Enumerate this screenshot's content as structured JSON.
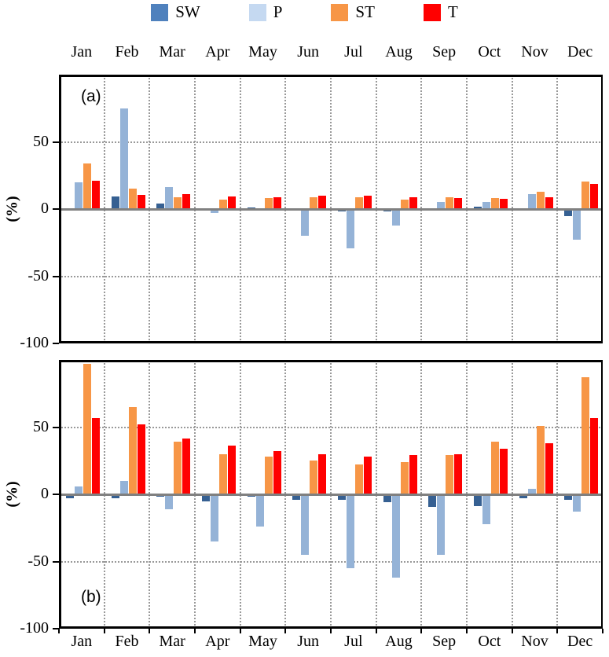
{
  "chart_data": {
    "type": "bar",
    "title": "",
    "xlabel": "",
    "ylabel": "(%)",
    "ylim": [
      -100,
      100
    ],
    "yticks_labeled": [
      50,
      0,
      -50,
      -100
    ],
    "grid": "dotted vertical lines at month-group boundaries; dotted horizontal lines at +50 and -50; solid gray line at 0",
    "legend_position": "top-center",
    "categories": [
      "Jan",
      "Feb",
      "Mar",
      "Apr",
      "May",
      "Jun",
      "Jul",
      "Aug",
      "Sep",
      "Oct",
      "Nov",
      "Dec"
    ],
    "legend": [
      {
        "name": "SW",
        "swatch_color": "#4F81BD",
        "bar_color": "#366092"
      },
      {
        "name": "P",
        "swatch_color": "#C5D9F1",
        "bar_color": "#95B3D7"
      },
      {
        "name": "ST",
        "swatch_color": "#F79646",
        "bar_color": "#F79646"
      },
      {
        "name": "T",
        "swatch_color": "#FF0000",
        "bar_color": "#FF0000"
      }
    ],
    "panels": [
      {
        "label": "(a)",
        "label_position": "top-left",
        "series": [
          {
            "name": "SW",
            "values": [
              0.5,
              9.5,
              4,
              0,
              1,
              -1,
              -1.5,
              -2,
              -1,
              2,
              0.5,
              -5.5
            ]
          },
          {
            "name": "P",
            "values": [
              20,
              75,
              16.5,
              -3,
              0.5,
              -20,
              -29,
              -12.5,
              5,
              5,
              11,
              -23
            ]
          },
          {
            "name": "ST",
            "values": [
              34,
              15,
              8.5,
              7,
              8,
              9,
              8.5,
              7,
              8.5,
              8,
              13,
              20.5
            ]
          },
          {
            "name": "T",
            "values": [
              21,
              10.5,
              11,
              9.5,
              9,
              10,
              10,
              9,
              8,
              7.5,
              9,
              18.5
            ]
          }
        ]
      },
      {
        "label": "(b)",
        "label_position": "bottom-left",
        "series": [
          {
            "name": "SW",
            "values": [
              -3,
              -3,
              -1.5,
              -5,
              -2,
              -4,
              -4,
              -6,
              -9.5,
              -9,
              -3,
              -4
            ]
          },
          {
            "name": "P",
            "values": [
              6,
              10,
              -11,
              -35,
              -24,
              -45,
              -55,
              -62,
              -45,
              -22,
              4,
              -13
            ]
          },
          {
            "name": "ST",
            "values": [
              97,
              65,
              39,
              30,
              28,
              25,
              22,
              24,
              29,
              39,
              51,
              87
            ]
          },
          {
            "name": "T",
            "values": [
              57,
              52,
              41.5,
              36,
              32,
              30,
              28,
              29,
              30,
              34,
              38,
              57
            ]
          }
        ]
      }
    ]
  }
}
